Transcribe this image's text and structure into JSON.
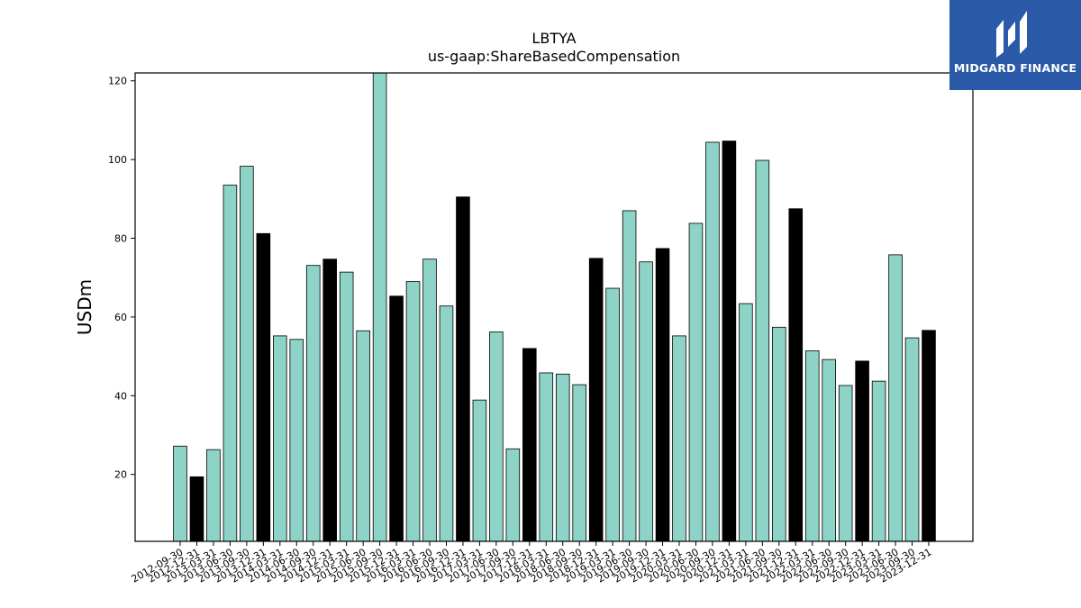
{
  "chart_data": {
    "type": "bar",
    "title": "LBTYA",
    "subtitle": "us-gaap:ShareBasedCompensation",
    "xlabel": "",
    "ylabel": "USDm",
    "ylim": [
      3,
      122
    ],
    "yticks": [
      20,
      40,
      60,
      80,
      100,
      120
    ],
    "grid": false,
    "legend": "none",
    "colors": {
      "quarter": "#8dd3c7",
      "year_end": "#000000"
    },
    "categories": [
      "2012-09-30",
      "2012-12-31",
      "2013-03-31",
      "2013-06-30",
      "2013-09-30",
      "2013-12-31",
      "2014-03-31",
      "2014-06-30",
      "2014-09-30",
      "2014-12-31",
      "2015-03-31",
      "2015-06-30",
      "2015-09-30",
      "2015-12-31",
      "2016-03-31",
      "2016-06-30",
      "2016-09-30",
      "2016-12-31",
      "2017-03-31",
      "2017-06-30",
      "2017-09-30",
      "2017-12-31",
      "2018-03-31",
      "2018-06-30",
      "2018-09-30",
      "2018-12-31",
      "2019-03-31",
      "2019-06-30",
      "2019-09-30",
      "2019-12-31",
      "2020-03-31",
      "2020-06-30",
      "2020-09-30",
      "2020-12-31",
      "2021-03-31",
      "2021-06-30",
      "2021-09-30",
      "2021-12-31",
      "2022-03-31",
      "2022-06-30",
      "2022-09-30",
      "2022-12-31",
      "2023-03-31",
      "2023-06-30",
      "2023-09-30",
      "2023-12-31"
    ],
    "values": [
      27.2,
      19.4,
      26.3,
      93.5,
      98.3,
      81.2,
      55.2,
      54.3,
      73.1,
      74.7,
      71.4,
      56.5,
      122.5,
      65.3,
      69.0,
      74.7,
      62.8,
      90.5,
      38.9,
      56.2,
      26.5,
      52.0,
      45.8,
      45.5,
      42.8,
      74.9,
      67.3,
      87.0,
      74.0,
      77.4,
      55.2,
      83.8,
      104.4,
      104.7,
      63.4,
      99.8,
      57.4,
      87.5,
      51.4,
      49.2,
      42.6,
      48.8,
      43.7,
      75.8,
      54.7,
      56.6
    ],
    "year_end": [
      false,
      true,
      false,
      false,
      false,
      true,
      false,
      false,
      false,
      true,
      false,
      false,
      false,
      true,
      false,
      false,
      false,
      true,
      false,
      false,
      false,
      true,
      false,
      false,
      false,
      true,
      false,
      false,
      false,
      true,
      false,
      false,
      false,
      true,
      false,
      false,
      false,
      true,
      false,
      false,
      false,
      true,
      false,
      false,
      false,
      true
    ]
  },
  "logo": {
    "text": "MIDGARD FINANCE"
  }
}
